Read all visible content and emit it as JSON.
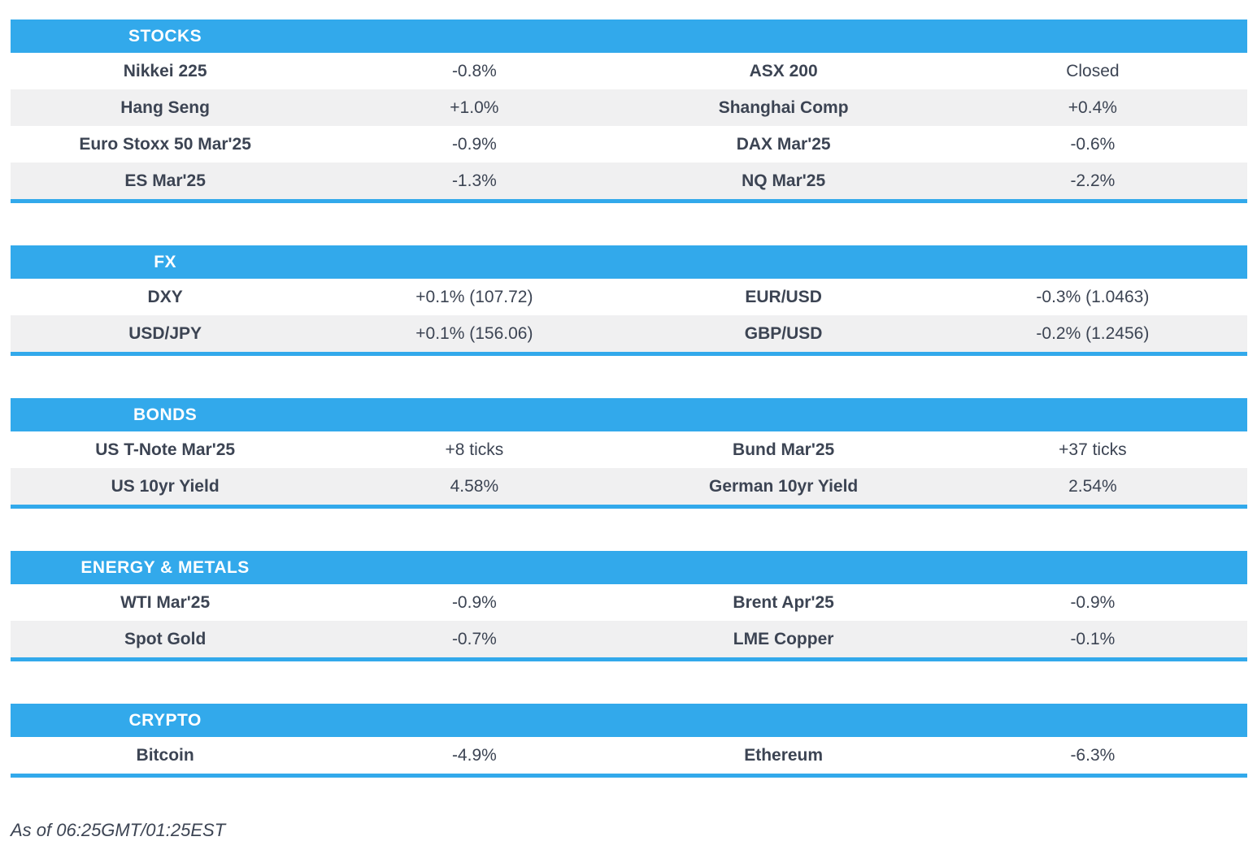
{
  "colors": {
    "accent": "#32A9EB",
    "alt_row": "#F0F0F1",
    "text": "#3C4453",
    "header_text": "#FFFFFF"
  },
  "chart_data": [
    {
      "type": "table",
      "title": "STOCKS",
      "rows": [
        [
          "Nikkei 225",
          "-0.8%",
          "ASX 200",
          "Closed"
        ],
        [
          "Hang Seng",
          "+1.0%",
          "Shanghai Comp",
          "+0.4%"
        ],
        [
          "Euro Stoxx 50 Mar'25",
          "-0.9%",
          "DAX Mar'25",
          "-0.6%"
        ],
        [
          "ES Mar'25",
          "-1.3%",
          "NQ Mar'25",
          "-2.2%"
        ]
      ]
    },
    {
      "type": "table",
      "title": "FX",
      "rows": [
        [
          "DXY",
          "+0.1% (107.72)",
          "EUR/USD",
          "-0.3% (1.0463)"
        ],
        [
          "USD/JPY",
          "+0.1% (156.06)",
          "GBP/USD",
          "-0.2% (1.2456)"
        ]
      ]
    },
    {
      "type": "table",
      "title": "BONDS",
      "rows": [
        [
          "US T-Note Mar'25",
          "+8 ticks",
          "Bund Mar'25",
          "+37 ticks"
        ],
        [
          "US 10yr Yield",
          "4.58%",
          "German 10yr Yield",
          "2.54%"
        ]
      ]
    },
    {
      "type": "table",
      "title": "ENERGY & METALS",
      "rows": [
        [
          "WTI Mar'25",
          "-0.9%",
          "Brent Apr'25",
          "-0.9%"
        ],
        [
          "Spot Gold",
          "-0.7%",
          "LME Copper",
          "-0.1%"
        ]
      ]
    },
    {
      "type": "table",
      "title": "CRYPTO",
      "rows": [
        [
          "Bitcoin",
          "-4.9%",
          "Ethereum",
          "-6.3%"
        ]
      ]
    }
  ],
  "footer": {
    "as_of": "As of 06:25GMT/01:25EST"
  }
}
